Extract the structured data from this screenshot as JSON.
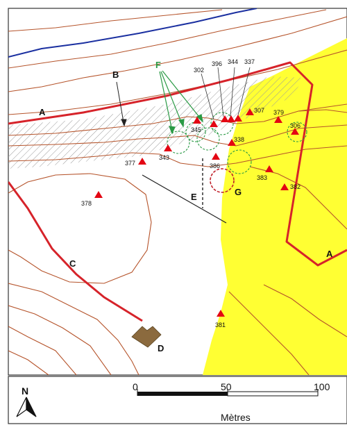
{
  "map": {
    "labels": {
      "A_left": "A",
      "A_right": "A",
      "B": "B",
      "C": "C",
      "D": "D",
      "E": "E",
      "F": "F",
      "G": "G"
    },
    "points": {
      "p302": "302",
      "p396": "396",
      "p344": "344",
      "p337": "337",
      "p307": "307",
      "p379": "379",
      "p306": "306",
      "p345": "345",
      "p338": "338",
      "p343": "343",
      "p377": "377",
      "p386": "386",
      "p383": "383",
      "p382": "382",
      "p378": "378",
      "p381": "381"
    },
    "colors": {
      "boundary": "#d6232a",
      "marker": "#e30613",
      "contour": "#b5532a",
      "river": "#1a2fa0",
      "zone": "#ffff33",
      "f_label": "#2a9a45",
      "building": "#8b6a3e"
    }
  },
  "legend": {
    "north": "N",
    "scale_0": "0",
    "scale_50": "50",
    "scale_100": "100",
    "unit": "Mètres"
  }
}
